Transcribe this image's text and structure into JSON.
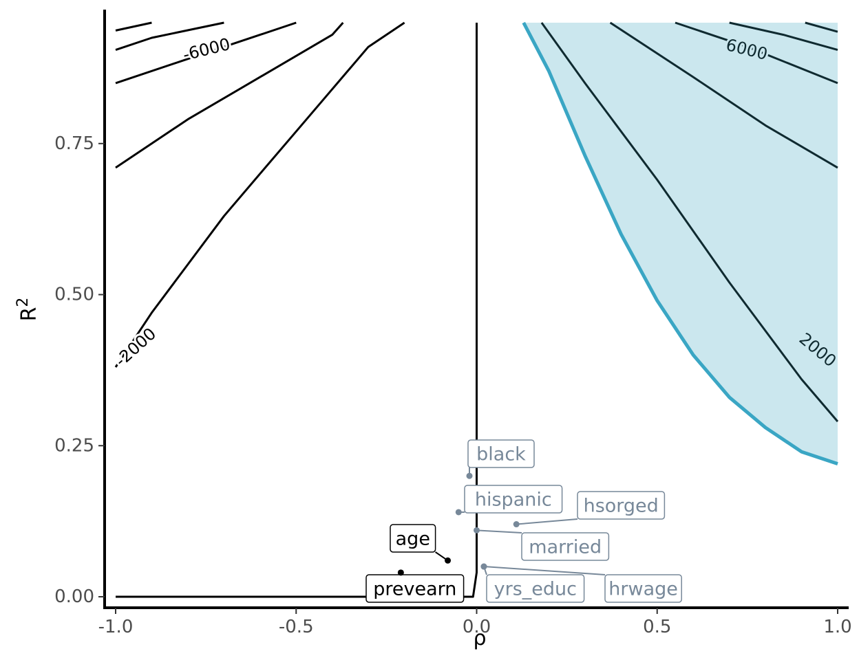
{
  "chart_data": {
    "type": "line",
    "xlabel": "ρ",
    "ylabel": "R",
    "ylabel_superscript": "2",
    "xlim": [
      -1.0,
      1.0
    ],
    "ylim": [
      0.0,
      0.95
    ],
    "x_ticks": [
      {
        "value": -1.0,
        "label": "-1.0"
      },
      {
        "value": -0.5,
        "label": "-0.5"
      },
      {
        "value": 0.0,
        "label": "0.0"
      },
      {
        "value": 0.5,
        "label": "0.5"
      },
      {
        "value": 1.0,
        "label": "1.0"
      }
    ],
    "y_ticks": [
      {
        "value": 0.0,
        "label": "0.00"
      },
      {
        "value": 0.25,
        "label": "0.25"
      },
      {
        "value": 0.5,
        "label": "0.50"
      },
      {
        "value": 0.75,
        "label": "0.75"
      }
    ],
    "grid": false,
    "colors": {
      "contour": "#000000",
      "contour_shaded": "#0f2a30",
      "boundary": "#3aa6c4",
      "shade": "#cbe7ee",
      "point_dark": "#000000",
      "point_gray": "#778899"
    },
    "contours": [
      {
        "level": "0",
        "label": "",
        "points": [
          [
            -1.0,
            0.0
          ],
          [
            -0.01,
            0.0
          ],
          [
            0.0,
            0.04
          ],
          [
            0.0,
            0.95
          ]
        ]
      },
      {
        "level": "-2000",
        "label": "-2000",
        "points": [
          [
            -1.0,
            0.38
          ],
          [
            -0.9,
            0.47
          ],
          [
            -0.8,
            0.55
          ],
          [
            -0.7,
            0.63
          ],
          [
            -0.6,
            0.7
          ],
          [
            -0.5,
            0.77
          ],
          [
            -0.4,
            0.84
          ],
          [
            -0.3,
            0.91
          ],
          [
            -0.2,
            0.95
          ]
        ]
      },
      {
        "level": "-4000",
        "label": "",
        "points": [
          [
            -1.0,
            0.71
          ],
          [
            -0.8,
            0.79
          ],
          [
            -0.6,
            0.86
          ],
          [
            -0.4,
            0.93
          ],
          [
            -0.37,
            0.95
          ]
        ]
      },
      {
        "level": "-6000",
        "label": "-6000",
        "points": [
          [
            -1.0,
            0.85
          ],
          [
            -0.8,
            0.89
          ],
          [
            -0.6,
            0.93
          ],
          [
            -0.5,
            0.95
          ]
        ]
      },
      {
        "level": "-8000",
        "label": "",
        "points": [
          [
            -1.0,
            0.905
          ],
          [
            -0.9,
            0.925
          ],
          [
            -0.7,
            0.95
          ]
        ]
      },
      {
        "level": "-10000",
        "label": "",
        "points": [
          [
            -1.0,
            0.937
          ],
          [
            -0.9,
            0.95
          ]
        ]
      },
      {
        "level": "2000",
        "label": "2000",
        "points": [
          [
            0.18,
            0.95
          ],
          [
            0.3,
            0.85
          ],
          [
            0.5,
            0.69
          ],
          [
            0.7,
            0.52
          ],
          [
            0.9,
            0.36
          ],
          [
            1.0,
            0.29
          ]
        ]
      },
      {
        "level": "4000",
        "label": "",
        "points": [
          [
            0.37,
            0.95
          ],
          [
            0.6,
            0.86
          ],
          [
            0.8,
            0.78
          ],
          [
            1.0,
            0.71
          ]
        ]
      },
      {
        "level": "6000",
        "label": "6000",
        "points": [
          [
            0.55,
            0.95
          ],
          [
            0.75,
            0.91
          ],
          [
            1.0,
            0.85
          ]
        ]
      },
      {
        "level": "8000",
        "label": "",
        "points": [
          [
            0.7,
            0.95
          ],
          [
            0.85,
            0.93
          ],
          [
            1.0,
            0.905
          ]
        ]
      },
      {
        "level": "10000",
        "label": "",
        "points": [
          [
            0.91,
            0.95
          ],
          [
            1.0,
            0.935
          ]
        ]
      }
    ],
    "boundary": [
      [
        0.13,
        0.95
      ],
      [
        0.2,
        0.87
      ],
      [
        0.3,
        0.73
      ],
      [
        0.4,
        0.6
      ],
      [
        0.5,
        0.49
      ],
      [
        0.6,
        0.4
      ],
      [
        0.7,
        0.33
      ],
      [
        0.8,
        0.28
      ],
      [
        0.9,
        0.24
      ],
      [
        1.0,
        0.22
      ]
    ],
    "points": [
      {
        "label": "black",
        "x": -0.02,
        "y": 0.2,
        "color": "gray"
      },
      {
        "label": "hispanic",
        "x": -0.05,
        "y": 0.14,
        "color": "gray"
      },
      {
        "label": "hsorged",
        "x": 0.11,
        "y": 0.12,
        "color": "gray"
      },
      {
        "label": "married",
        "x": 0.0,
        "y": 0.11,
        "color": "gray"
      },
      {
        "label": "age",
        "x": -0.08,
        "y": 0.06,
        "color": "dark"
      },
      {
        "label": "prevearn",
        "x": -0.21,
        "y": 0.04,
        "color": "dark"
      },
      {
        "label": "yrs_educ",
        "x": 0.02,
        "y": 0.05,
        "color": "gray"
      },
      {
        "label": "hrwage",
        "x": 0.02,
        "y": 0.05,
        "color": "gray"
      }
    ]
  }
}
